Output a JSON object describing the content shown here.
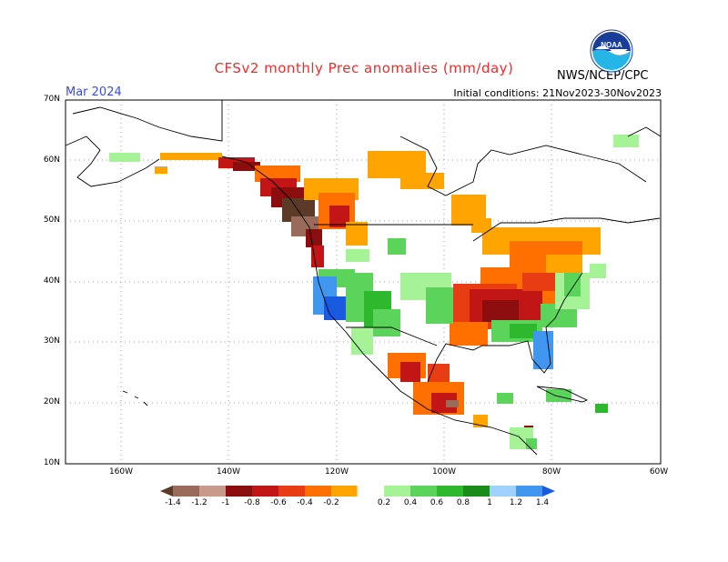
{
  "title": "CFSv2 monthly Prec anomalies (mm/day)",
  "agency": "NWS/NCEP/CPC",
  "month": "Mar 2024",
  "initial_conditions": "Initial conditions: 21Nov2023-30Nov2023",
  "logo": "NOAA",
  "colors": {
    "title": "#e03030",
    "month": "#3a4fd6"
  },
  "lat_labels": [
    "70N",
    "60N",
    "50N",
    "40N",
    "30N",
    "20N",
    "10N"
  ],
  "lon_labels": [
    "160W",
    "140W",
    "120W",
    "100W",
    "80W",
    "60W"
  ],
  "legend": {
    "labels": [
      "-1.4",
      "-1.2",
      "-1",
      "-0.8",
      "-0.6",
      "-0.4",
      "-0.2",
      "0.2",
      "0.4",
      "0.6",
      "0.8",
      "1",
      "1.2",
      "1.4"
    ],
    "colors": [
      "#5c3a28",
      "#9a6b5a",
      "#c89a8c",
      "#8b0d0d",
      "#c21616",
      "#e83c14",
      "#ff7000",
      "#ffa400",
      "#ffffff",
      "#a6f296",
      "#5cd45c",
      "#2eb82e",
      "#1a8c1a",
      "#a0d2ff",
      "#4196f0",
      "#1a5ae0"
    ]
  }
}
